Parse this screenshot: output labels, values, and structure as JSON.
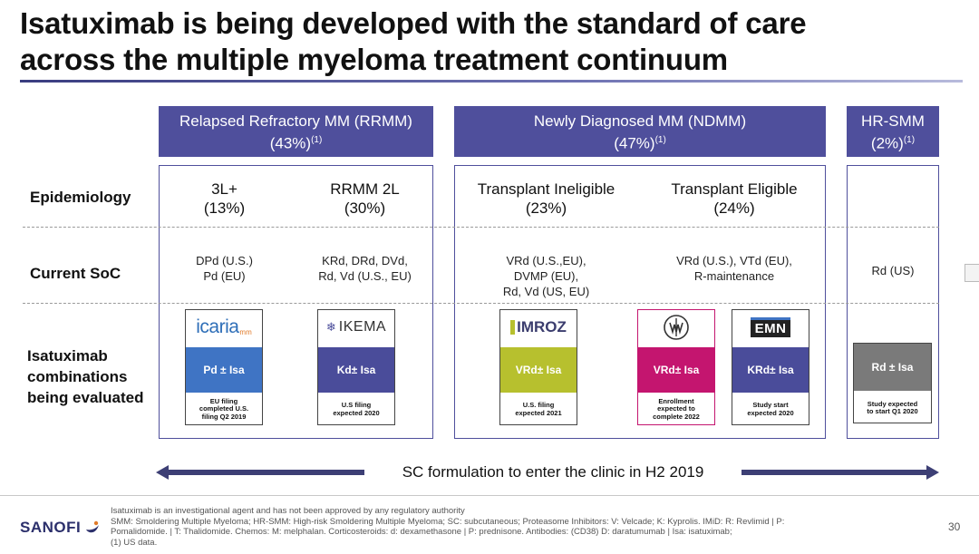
{
  "title": {
    "line1": "Isatuximab is being developed with the standard of care",
    "line2": "across the multiple myeloma treatment continuum"
  },
  "columns": {
    "rrmm": {
      "name": "Relapsed Refractory MM (RRMM)",
      "pct": "(43%)",
      "ref": "(1)"
    },
    "ndmm": {
      "name": "Newly Diagnosed MM (NDMM)",
      "pct": "(47%)",
      "ref": "(1)"
    },
    "hrsmm": {
      "name": "HR-SMM",
      "pct": "(2%)",
      "ref": "(1)"
    }
  },
  "row_labels": {
    "epidemiology": "Epidemiology",
    "current_soc": "Current SoC",
    "isa_line1": "Isatuximab",
    "isa_line2": "combinations",
    "isa_line3": "being evaluated"
  },
  "epidemiology": [
    {
      "name": "3L+",
      "pct": "(13%)"
    },
    {
      "name": "RRMM 2L",
      "pct": "(30%)"
    },
    {
      "name": "Transplant Ineligible",
      "pct": "(23%)"
    },
    {
      "name": "Transplant Eligible",
      "pct": "(24%)"
    }
  ],
  "soc": [
    {
      "line1": "DPd (U.S.)",
      "line2": "Pd (EU)",
      "line3": ""
    },
    {
      "line1": "KRd, DRd, DVd,",
      "line2": "Rd, Vd (U.S., EU)",
      "line3": ""
    },
    {
      "line1": "VRd (U.S.,EU),",
      "line2": "DVMP (EU),",
      "line3": "Rd, Vd (US, EU)"
    },
    {
      "line1": "VRd (U.S.), VTd (EU),",
      "line2": "R-maintenance",
      "line3": ""
    },
    {
      "line1": "Rd (US)",
      "line2": "",
      "line3": ""
    }
  ],
  "trials": [
    {
      "logo": "icaria",
      "logo_sub": "mm",
      "regimen": "Pd ± Isa",
      "color": "#3f74c4",
      "note_l1": "EU filing",
      "note_l2": "completed U.S.",
      "note_l3": "filing Q2 2019"
    },
    {
      "logo": "IKEMA",
      "logo_sub": "",
      "regimen": "Kd± Isa",
      "color": "#4a4c9a",
      "note_l1": "U.S filing",
      "note_l2": "expected  2020",
      "note_l3": ""
    },
    {
      "logo": "IMROZ",
      "logo_sub": "",
      "regimen": "VRd± Isa",
      "color": "#b7c02e",
      "note_l1": "U.S. filing",
      "note_l2": "expected  2021",
      "note_l3": ""
    },
    {
      "logo": "",
      "logo_sub": "",
      "regimen": "VRd± Isa",
      "color": "#c4156f",
      "note_l1": "Enrollment",
      "note_l2": "expected to",
      "note_l3": "complete 2022"
    },
    {
      "logo": "EMN",
      "logo_sub": "",
      "regimen": "KRd± Isa",
      "color": "#4a4c9a",
      "note_l1": "Study start",
      "note_l2": "expected 2020",
      "note_l3": ""
    },
    {
      "logo": "",
      "logo_sub": "",
      "regimen": "Rd  ± Isa",
      "color": "#7a7a7a",
      "note_l1": "Study expected",
      "note_l2": "to start Q1 2020",
      "note_l3": ""
    }
  ],
  "arrow_text": "SC formulation to enter the clinic in H2 2019",
  "footnotes": {
    "line1": "Isatuximab is an investigational agent and has not been approved by any regulatory authority",
    "line2": "SMM:  Smoldering Multiple Myeloma; HR-SMM: High-risk Smoldering Multiple Myeloma; SC: subcutaneous; Proteasome Inhibitors: V: Velcade; K: Kyprolis.   IMiD: R: Revlimid | P:",
    "line3": "Pomalidomide. | T: Thalidomide.   Chemos: M: melphalan.   Corticosteroids: d: dexamethasone | P: prednisone. Antibodies: (CD38) D: daratumumab | Isa:  isatuximab;",
    "line4": "(1)     US data."
  },
  "brand": "SANOFI",
  "page_number": "30",
  "colors": {
    "header": "#4f4f9c",
    "arrow": "#3d3f75"
  }
}
